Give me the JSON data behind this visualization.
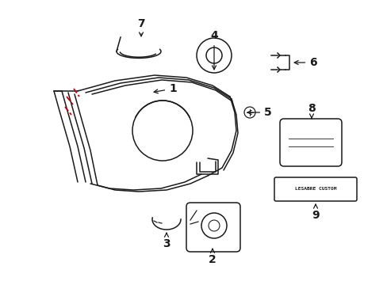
{
  "background_color": "#ffffff",
  "label_color": "#1a1a1a",
  "red_color": "#cc0000",
  "figsize": [
    4.89,
    3.6
  ],
  "dpi": 100
}
